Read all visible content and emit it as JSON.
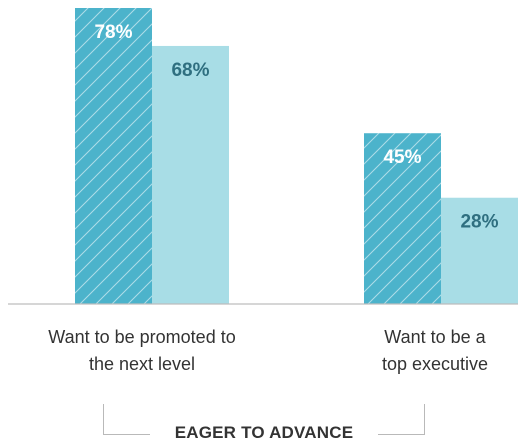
{
  "chart_data": {
    "type": "bar",
    "categories": [
      "Want to be promoted to\nthe next level",
      "Want to be a\ntop executive"
    ],
    "series": [
      {
        "values": [
          78,
          45
        ],
        "labels": [
          "78%",
          "45%"
        ],
        "color": "#4cb3cb",
        "pattern": "diagonal-hatch"
      },
      {
        "values": [
          68,
          28
        ],
        "labels": [
          "68%",
          "28%"
        ],
        "color": "#a8dde6"
      }
    ],
    "ylim": [
      0,
      78
    ],
    "grid": false,
    "group_label": "EAGER TO ADVANCE",
    "baseline_color": "#bdbdbd",
    "label_colors": {
      "dark_bar": "#ffffff",
      "light_bar": "#2f6f80"
    }
  }
}
